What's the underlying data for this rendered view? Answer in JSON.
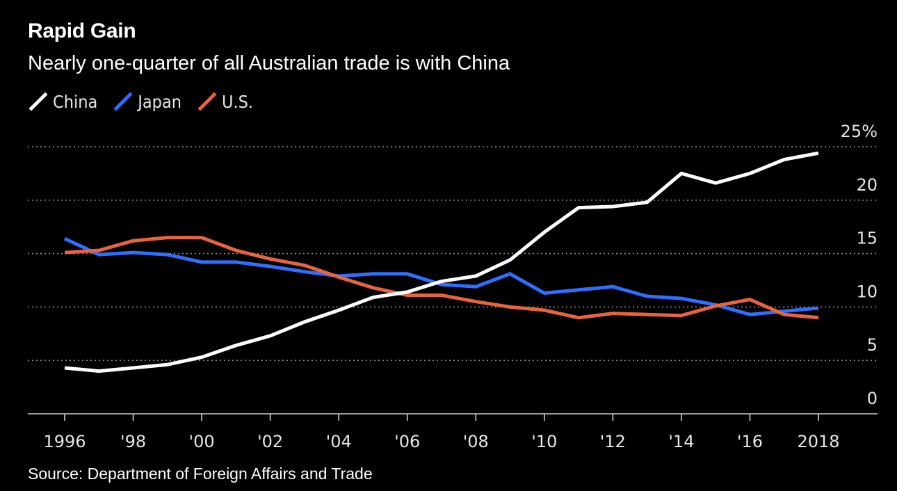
{
  "header": {
    "title": "Rapid Gain",
    "subtitle": "Nearly one-quarter of all Australian trade is with China"
  },
  "source": "Source: Department of Foreign Affairs and Trade",
  "chart_data": {
    "type": "line",
    "title": "Rapid Gain",
    "subtitle": "Nearly one-quarter of all Australian trade is with China",
    "xlabel": "",
    "ylabel": "",
    "x": [
      1996,
      1997,
      1998,
      1999,
      2000,
      2001,
      2002,
      2003,
      2004,
      2005,
      2006,
      2007,
      2008,
      2009,
      2010,
      2011,
      2012,
      2013,
      2014,
      2015,
      2016,
      2017,
      2018
    ],
    "xlim": [
      1995,
      2020
    ],
    "ylim": [
      0,
      25
    ],
    "x_ticks": [
      {
        "value": 1996,
        "label": "1996"
      },
      {
        "value": 1998,
        "label": "'98"
      },
      {
        "value": 2000,
        "label": "'00"
      },
      {
        "value": 2002,
        "label": "'02"
      },
      {
        "value": 2004,
        "label": "'04"
      },
      {
        "value": 2006,
        "label": "'06"
      },
      {
        "value": 2008,
        "label": "'08"
      },
      {
        "value": 2010,
        "label": "'10"
      },
      {
        "value": 2012,
        "label": "'12"
      },
      {
        "value": 2014,
        "label": "'14"
      },
      {
        "value": 2016,
        "label": "'16"
      },
      {
        "value": 2018,
        "label": "2018"
      }
    ],
    "y_ticks": [
      {
        "value": 0,
        "label": "0"
      },
      {
        "value": 5,
        "label": "5"
      },
      {
        "value": 10,
        "label": "10"
      },
      {
        "value": 15,
        "label": "15"
      },
      {
        "value": 20,
        "label": "20"
      },
      {
        "value": 25,
        "label": "25%"
      }
    ],
    "grid": "horizontal-dotted",
    "legend_position": "top-left",
    "series": [
      {
        "name": "China",
        "color": "#ffffff",
        "values": [
          4.3,
          4.0,
          4.3,
          4.6,
          5.3,
          6.4,
          7.3,
          8.6,
          9.7,
          10.9,
          11.4,
          12.4,
          12.9,
          14.4,
          17.0,
          19.3,
          19.4,
          19.8,
          22.5,
          21.6,
          22.5,
          23.8,
          24.4
        ]
      },
      {
        "name": "Japan",
        "color": "#2f6fff",
        "values": [
          16.4,
          14.9,
          15.1,
          14.9,
          14.2,
          14.2,
          13.8,
          13.3,
          12.9,
          13.1,
          13.1,
          12.1,
          11.9,
          13.1,
          11.3,
          11.6,
          11.9,
          11.0,
          10.8,
          10.2,
          9.3,
          9.6,
          9.9
        ]
      },
      {
        "name": "U.S.",
        "color": "#e8643c",
        "values": [
          15.1,
          15.3,
          16.2,
          16.5,
          16.5,
          15.3,
          14.5,
          13.9,
          12.8,
          11.8,
          11.1,
          11.1,
          10.5,
          10.0,
          9.7,
          9.0,
          9.4,
          9.3,
          9.2,
          10.1,
          10.7,
          9.3,
          9.0
        ]
      }
    ]
  }
}
